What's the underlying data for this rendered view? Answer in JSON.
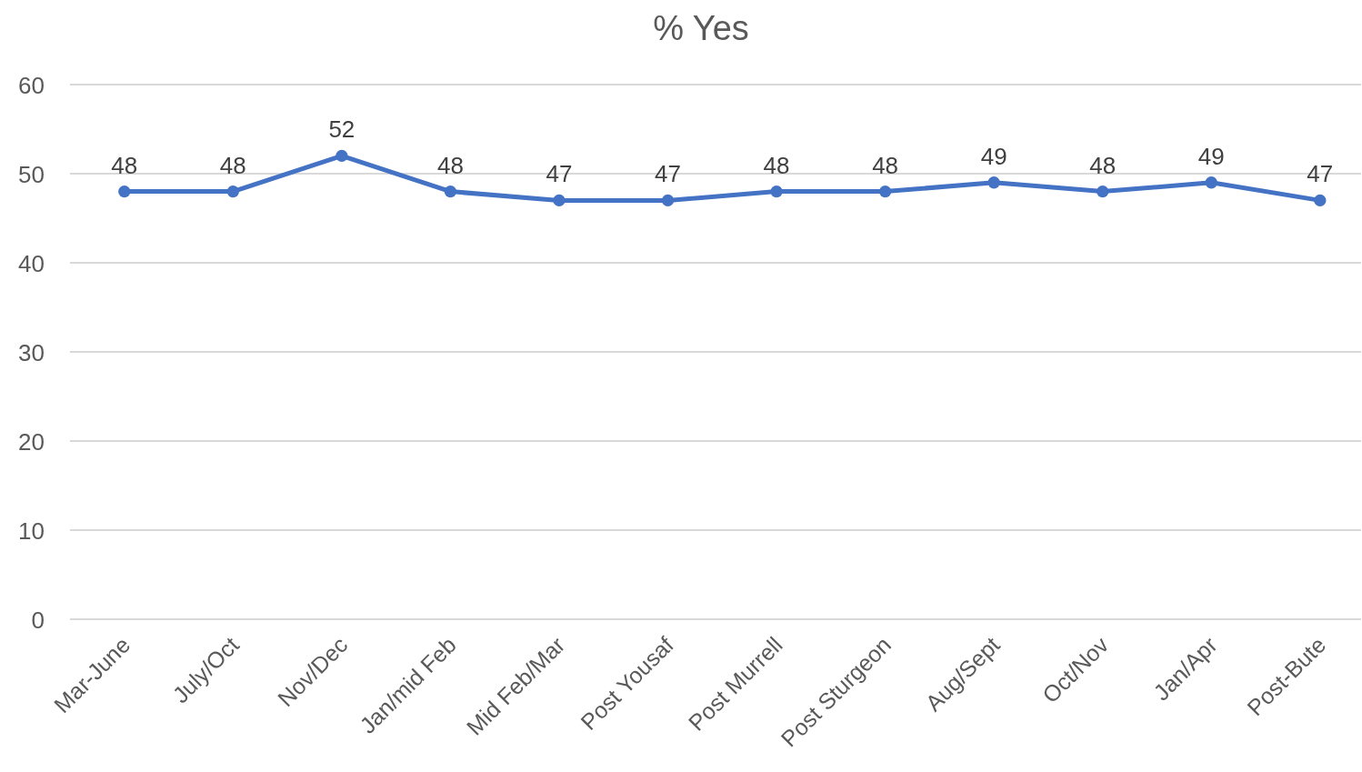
{
  "chart_data": {
    "type": "line",
    "title": "% Yes",
    "categories": [
      "Mar-June",
      "July/Oct",
      "Nov/Dec",
      "Jan/mid Feb",
      "Mid Feb/Mar",
      "Post Yousaf",
      "Post Murrell",
      "Post Sturgeon",
      "Aug/Sept",
      "Oct/Nov",
      "Jan/Apr",
      "Post-Bute"
    ],
    "series": [
      {
        "color": "#4472c4",
        "values": [
          48,
          48,
          52,
          48,
          47,
          47,
          48,
          48,
          49,
          48,
          49,
          47
        ]
      }
    ],
    "ylim": [
      0,
      60
    ],
    "yticks": [
      0,
      10,
      20,
      30,
      40,
      50,
      60
    ],
    "grid": "y",
    "marker": "circle",
    "line_style": "solid",
    "data_labels": true
  }
}
